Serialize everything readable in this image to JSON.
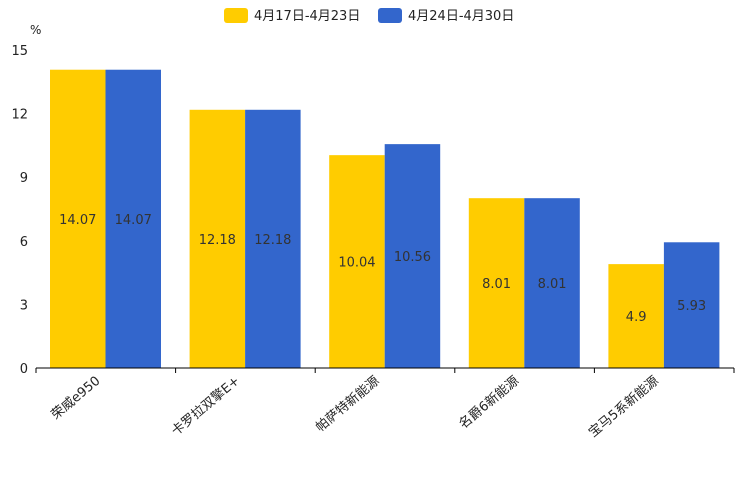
{
  "chart_data": {
    "type": "bar",
    "title": "",
    "xlabel": "",
    "ylabel": "%",
    "ylim": [
      0,
      15
    ],
    "yticks": [
      0,
      3,
      6,
      9,
      12,
      15
    ],
    "categories": [
      "荣威e950",
      "卡罗拉双擎E+",
      "帕萨特新能源",
      "名爵6新能源",
      "宝马5系新能源"
    ],
    "series": [
      {
        "name": "4月17日-4月23日",
        "color": "#FFCC00",
        "values": [
          14.07,
          12.18,
          10.04,
          8.01,
          4.9
        ]
      },
      {
        "name": "4月24日-4月30日",
        "color": "#3366CC",
        "values": [
          14.07,
          12.18,
          10.56,
          8.01,
          5.93
        ]
      }
    ],
    "legend_position": "top-center",
    "grid": false
  }
}
